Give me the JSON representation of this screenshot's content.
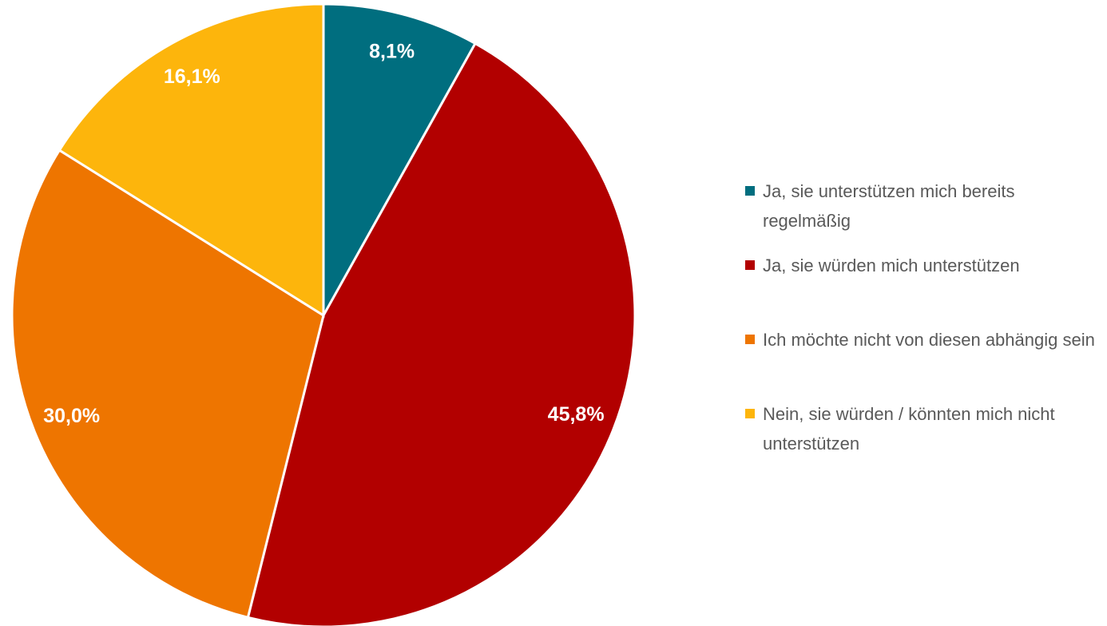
{
  "chart_data": {
    "type": "pie",
    "categories": [
      "Ja, sie unterstützen mich bereits regelmäßig",
      "Ja, sie würden mich unterstützen",
      "Ich möchte nicht von diesen abhängig sein",
      "Nein, sie würden / könnten mich nicht unterstützen"
    ],
    "values": [
      8.1,
      45.8,
      30.0,
      16.1
    ],
    "value_labels": [
      "8,1%",
      "45,8%",
      "30,0%",
      "16,1%"
    ],
    "colors": [
      "#006e7f",
      "#b20000",
      "#ee7500",
      "#fdb50c"
    ],
    "legend": "right"
  }
}
